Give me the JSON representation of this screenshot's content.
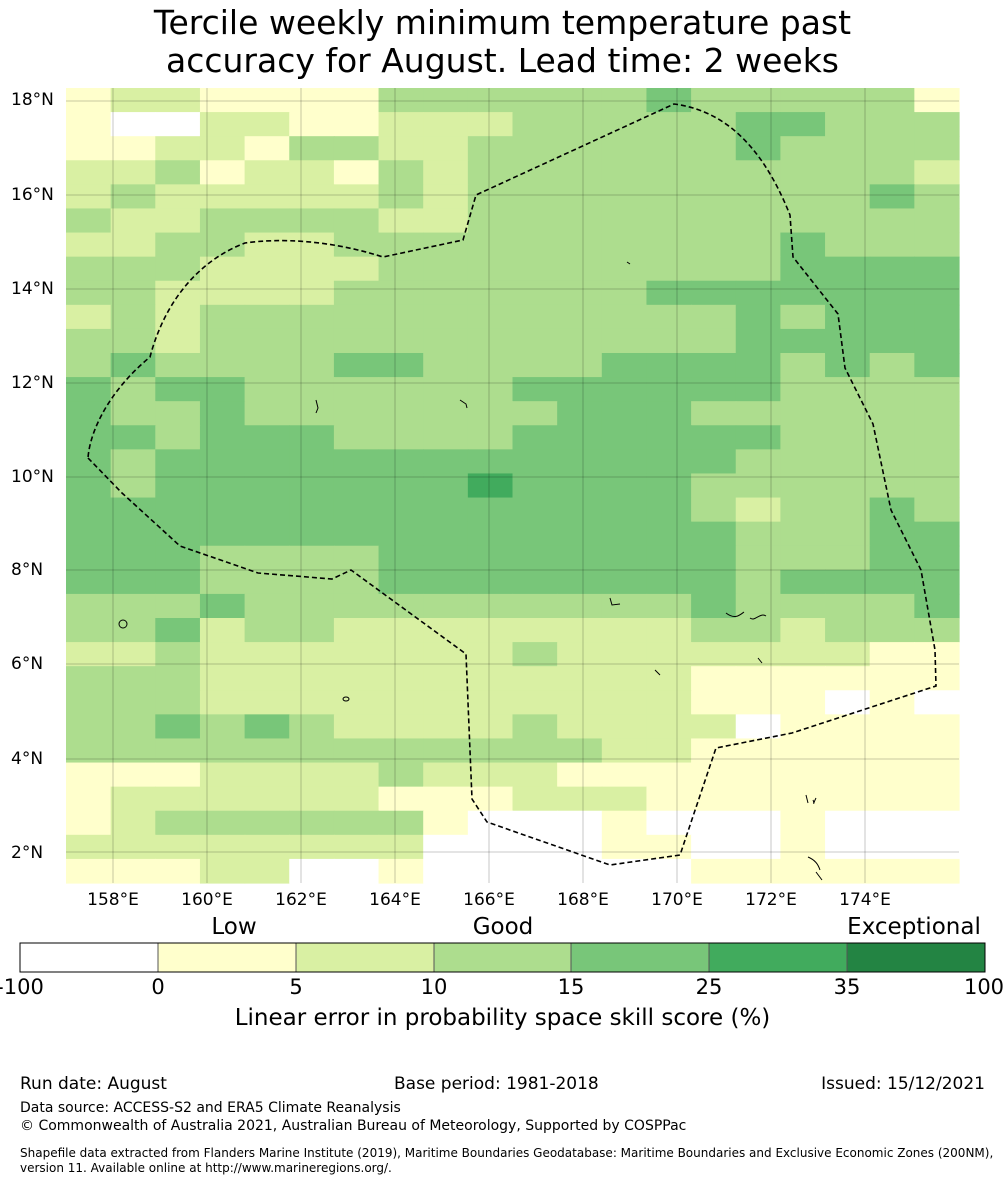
{
  "title": {
    "line1": "Tercile weekly minimum temperature past",
    "line2": "accuracy for August. Lead time: 2 weeks"
  },
  "map": {
    "lat_labels": [
      "18°N",
      "16°N",
      "14°N",
      "12°N",
      "10°N",
      "8°N",
      "6°N",
      "4°N",
      "2°N"
    ],
    "lon_labels": [
      "158°E",
      "160°E",
      "162°E",
      "164°E",
      "166°E",
      "168°E",
      "170°E",
      "172°E",
      "174°E"
    ],
    "grid_rows": [
      "23322224444445444442",
      "21133223334444455444",
      "22332443344444454444",
      "33423324344444444443",
      "34333334344444444454",
      "43344443344444444444",
      "33443344444444445444",
      "44433334444444445555",
      "44333344444445555555",
      "34344444444444454555",
      "44344444444444455555",
      "45444455444455554545",
      "54554444445555554444",
      "54454444444555444444",
      "55455544445555554444",
      "54555555555555544444",
      "54555555565555444444",
      "55555555555555434454",
      "55555555555555544455",
      "55544445555555544455",
      "55544445555555545555",
      "44454444444444544445",
      "44534433333333443444",
      "33433333334333333322",
      "44433333333333222222",
      "44433333333333222121",
      "44545433334333312222",
      "44444444444433222222",
      "22233334333222222222",
      "23333332223332222222",
      "23444444211121112111",
      "33333333111122112111",
      "22233112111111222222"
    ],
    "colors": {
      "c1": "#ffffff",
      "c2": "#ffffcc",
      "c3": "#d9f0a3",
      "c4": "#addd8e",
      "c5": "#78c679",
      "c6": "#41ab5d",
      "c7": "#238443"
    }
  },
  "colorbar": {
    "categories": [
      "Low",
      "Good",
      "Exceptional"
    ],
    "ticks": [
      "-100",
      "0",
      "5",
      "10",
      "15",
      "25",
      "35",
      "100"
    ],
    "label": "Linear error in probability space skill score (%)"
  },
  "footer": {
    "run_date": "Run date: August",
    "base_period": "Base period: 1981-2018",
    "issued": "Issued: 15/12/2021",
    "data_source": "Data source: ACCESS-S2 and ERA5 Climate Reanalysis",
    "copyright": "© Commonwealth of Australia 2021, Australian Bureau of Meteorology, Supported by COSPPac",
    "shapefile": "Shapefile data extracted from Flanders Marine Institute (2019), Maritime Boundaries Geodatabase: Maritime Boundaries and Exclusive Economic Zones (200NM), version 11. Available online at http://www.marineregions.org/."
  }
}
